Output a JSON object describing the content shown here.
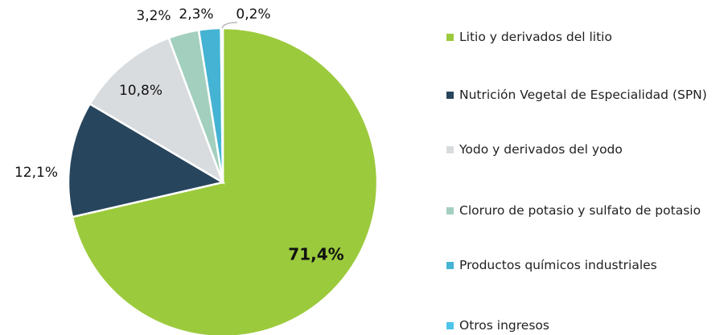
{
  "chart_data": {
    "type": "pie",
    "categories": [
      "Litio y derivados del litio",
      "Nutrición Vegetal de Especialidad (SPN)",
      "Yodo y derivados del yodo",
      "Cloruro de potasio y sulfato de potasio",
      "Productos químicos industriales",
      "Otros ingresos"
    ],
    "values": [
      71.4,
      12.1,
      10.8,
      3.2,
      2.3,
      0.2
    ],
    "value_labels": [
      "71,4%",
      "12,1%",
      "10,8%",
      "3,2%",
      "2,3%",
      "0,2%"
    ],
    "colors": [
      "#9bca3c",
      "#27455c",
      "#d9dcdf",
      "#a3cfbf",
      "#45b3d3",
      "#4fc4ea"
    ],
    "legend": "right"
  }
}
